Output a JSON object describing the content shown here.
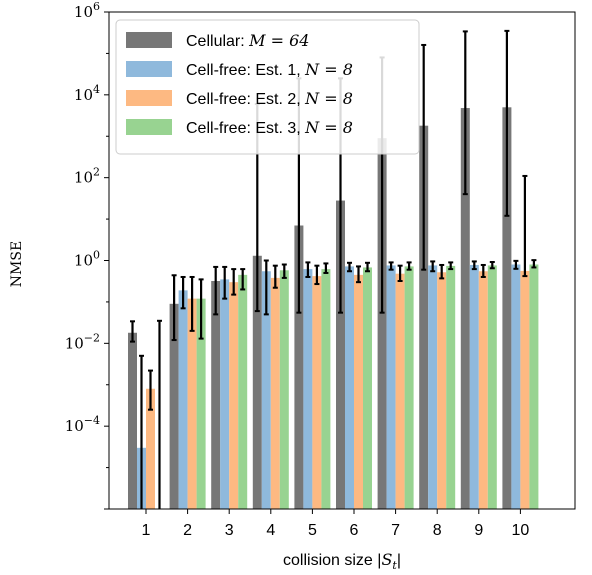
{
  "chart_data": {
    "type": "bar",
    "title": "",
    "xlabel": "collision size |S_t|",
    "ylabel": "NMSE",
    "yscale": "log",
    "ylim": [
      1e-06,
      1000000.0
    ],
    "ytick_values": [
      0.0001,
      0.01,
      1,
      100,
      10000,
      1000000
    ],
    "ytick_labels": [
      {
        "base": "10",
        "exp": "−4"
      },
      {
        "base": "10",
        "exp": "−2"
      },
      {
        "base": "10",
        "exp": "0"
      },
      {
        "base": "10",
        "exp": "2"
      },
      {
        "base": "10",
        "exp": "4"
      },
      {
        "base": "10",
        "exp": "6"
      }
    ],
    "categories": [
      "1",
      "2",
      "3",
      "4",
      "5",
      "6",
      "7",
      "8",
      "9",
      "10"
    ],
    "legend_position": "top-left",
    "series": [
      {
        "name": "Cellular: M = 64",
        "legend_label": {
          "text": "Cellular: ",
          "math": "M = 64"
        },
        "color": "#777777",
        "values": [
          0.018,
          0.09,
          0.32,
          1.3,
          7,
          28,
          900,
          1800,
          4800,
          5000
        ],
        "err_low": [
          0.011,
          0.012,
          0.05,
          0.06,
          0.055,
          0.055,
          0.055,
          0.6,
          40,
          12
        ],
        "err_high": [
          0.034,
          0.44,
          0.7,
          6000,
          25000,
          25000,
          80000,
          160000,
          340000,
          350000
        ]
      },
      {
        "name": "Cell-free: Est. 1, N = 8",
        "legend_label": {
          "text": "Cell-free: Est. 1, ",
          "math": "N = 8"
        },
        "color": "#8fb9dc",
        "values": [
          3e-05,
          0.19,
          0.35,
          0.55,
          0.62,
          0.72,
          0.76,
          0.76,
          0.78,
          0.8
        ],
        "err_low": [
          5e-07,
          0.07,
          0.12,
          0.05,
          0.4,
          0.55,
          0.6,
          0.55,
          0.62,
          0.63
        ],
        "err_high": [
          0.005,
          0.4,
          0.7,
          1.0,
          0.9,
          0.88,
          0.9,
          0.95,
          0.95,
          0.98
        ]
      },
      {
        "name": "Cell-free: Est. 2, N = 8",
        "legend_label": {
          "text": "Cell-free: Est. 2, ",
          "math": "N = 8"
        },
        "color": "#fdb982",
        "values": [
          0.0008,
          0.12,
          0.3,
          0.38,
          0.42,
          0.45,
          0.48,
          0.52,
          0.55,
          0.56
        ],
        "err_low": [
          0.00025,
          0.02,
          0.15,
          0.22,
          0.27,
          0.3,
          0.32,
          0.37,
          0.4,
          0.42
        ],
        "err_high": [
          0.0022,
          0.4,
          0.62,
          0.75,
          0.75,
          0.72,
          0.75,
          0.78,
          0.78,
          110
        ]
      },
      {
        "name": "Cell-free: Est. 3, N = 8",
        "legend_label": {
          "text": "Cell-free: Est. 3, ",
          "math": "N = 8"
        },
        "color": "#98d391",
        "values": [
          1e-06,
          0.12,
          0.45,
          0.58,
          0.62,
          0.68,
          0.72,
          0.74,
          0.76,
          0.8
        ],
        "err_low": [
          1e-06,
          0.013,
          0.2,
          0.38,
          0.5,
          0.55,
          0.6,
          0.62,
          0.65,
          0.68
        ],
        "err_high": [
          0.035,
          0.35,
          0.62,
          0.8,
          0.85,
          0.88,
          0.9,
          0.9,
          0.92,
          1.02
        ]
      }
    ]
  }
}
